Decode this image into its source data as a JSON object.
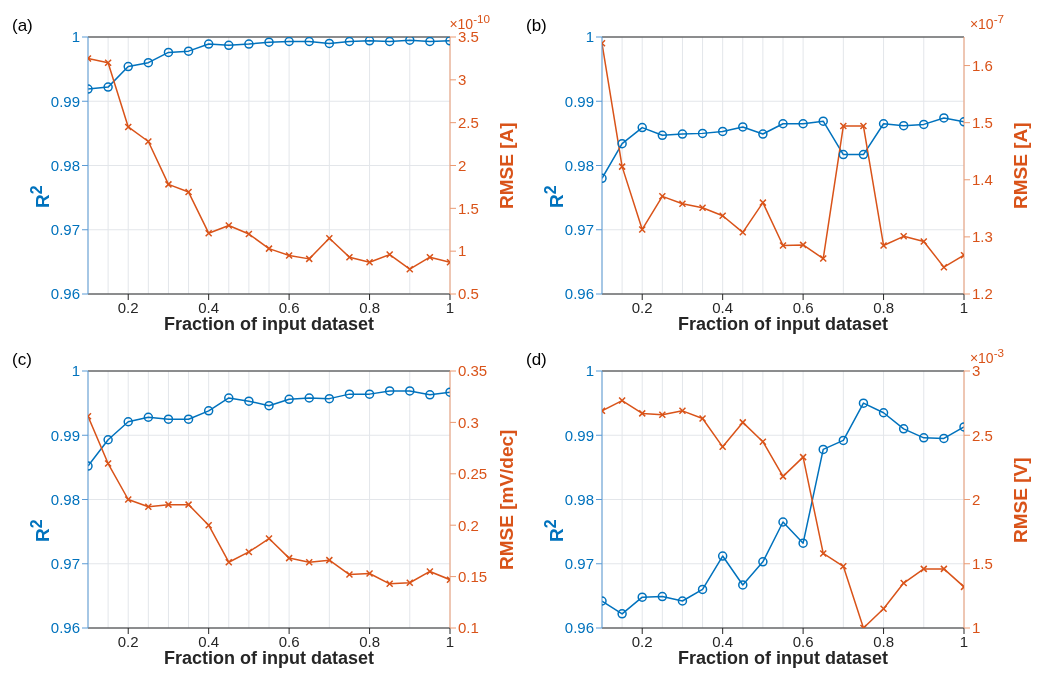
{
  "chart_data": [
    {
      "type": "line",
      "title": "(a)",
      "xlabel": "Fraction of input dataset",
      "ylabel": "R$^{2}$",
      "y2label": "RMSE [A]",
      "annotations": [
        "×10$^{-10}$"
      ],
      "x": [
        0.1,
        0.15,
        0.2,
        0.25,
        0.3,
        0.35,
        0.4,
        0.45,
        0.5,
        0.55,
        0.6,
        0.65,
        0.7,
        0.75,
        0.8,
        0.85,
        0.9,
        0.95,
        1
      ],
      "xlim": [
        0.1,
        1
      ],
      "xticks": [
        0.2,
        0.4,
        0.6,
        0.8,
        1
      ],
      "ylim": [
        0.96,
        1
      ],
      "yticks": [
        0.96,
        0.97,
        0.98,
        0.99,
        1
      ],
      "y2lim": [
        0.5,
        3.5
      ],
      "y2ticks": [
        0.5,
        1,
        1.5,
        2,
        2.5,
        3,
        3.5
      ],
      "grid": true,
      "line_style": "solid",
      "series": [
        {
          "color": "#0072bd",
          "marker": "circle",
          "values": [
            0.9919,
            0.9922,
            0.9954,
            0.996,
            0.9976,
            0.9978,
            0.9989,
            0.9987,
            0.9989,
            0.9992,
            0.9993,
            0.9993,
            0.999,
            0.9993,
            0.9994,
            0.9993,
            0.9995,
            0.9993,
            0.9994
          ]
        },
        {
          "color": "#d95319",
          "marker": "cross",
          "axis": "y2",
          "values": [
            3.25,
            3.2,
            2.45,
            2.28,
            1.78,
            1.69,
            1.21,
            1.3,
            1.2,
            1.03,
            0.95,
            0.91,
            1.15,
            0.93,
            0.87,
            0.96,
            0.79,
            0.93,
            0.87
          ]
        }
      ]
    },
    {
      "type": "line",
      "title": "(b)",
      "xlabel": "Fraction of input dataset",
      "ylabel": "R$^{2}$",
      "y2label": "RMSE [A]",
      "annotations": [
        "×10$^{-7}$"
      ],
      "x": [
        0.1,
        0.15,
        0.2,
        0.25,
        0.3,
        0.35,
        0.4,
        0.45,
        0.5,
        0.55,
        0.6,
        0.65,
        0.7,
        0.75,
        0.8,
        0.85,
        0.9,
        0.95,
        1
      ],
      "xlim": [
        0.1,
        1
      ],
      "xticks": [
        0.2,
        0.4,
        0.6,
        0.8,
        1
      ],
      "ylim": [
        0.96,
        1
      ],
      "yticks": [
        0.96,
        0.97,
        0.98,
        0.99,
        1
      ],
      "y2lim": [
        1.2,
        1.65
      ],
      "y2ticks": [
        1.2,
        1.3,
        1.4,
        1.5,
        1.6
      ],
      "grid": true,
      "line_style": "solid",
      "series": [
        {
          "color": "#0072bd",
          "marker": "circle",
          "values": [
            0.978,
            0.9834,
            0.9859,
            0.9847,
            0.9849,
            0.985,
            0.9853,
            0.986,
            0.9849,
            0.9865,
            0.9865,
            0.9869,
            0.9817,
            0.9817,
            0.9865,
            0.9862,
            0.9864,
            0.9874,
            0.9868
          ]
        },
        {
          "color": "#d95319",
          "marker": "cross",
          "axis": "y2",
          "values": [
            1.639,
            1.423,
            1.313,
            1.371,
            1.358,
            1.351,
            1.337,
            1.308,
            1.36,
            1.285,
            1.286,
            1.262,
            1.494,
            1.494,
            1.285,
            1.301,
            1.292,
            1.247,
            1.268
          ]
        }
      ]
    },
    {
      "type": "line",
      "title": "(c)",
      "xlabel": "Fraction of input dataset",
      "ylabel": "R$^{2}$",
      "y2label": "RMSE [mV/dec]",
      "x": [
        0.1,
        0.15,
        0.2,
        0.25,
        0.3,
        0.35,
        0.4,
        0.45,
        0.5,
        0.55,
        0.6,
        0.65,
        0.7,
        0.75,
        0.8,
        0.85,
        0.9,
        0.95,
        1
      ],
      "xlim": [
        0.1,
        1
      ],
      "xticks": [
        0.2,
        0.4,
        0.6,
        0.8,
        1
      ],
      "ylim": [
        0.96,
        1
      ],
      "yticks": [
        0.96,
        0.97,
        0.98,
        0.99,
        1
      ],
      "y2lim": [
        0.1,
        0.35
      ],
      "y2ticks": [
        0.1,
        0.15,
        0.2,
        0.25,
        0.3,
        0.35
      ],
      "grid": true,
      "line_style": "solid",
      "series": [
        {
          "color": "#0072bd",
          "marker": "circle",
          "values": [
            0.9852,
            0.9893,
            0.9921,
            0.9928,
            0.9925,
            0.9925,
            0.9938,
            0.9958,
            0.9953,
            0.9946,
            0.9956,
            0.9958,
            0.9957,
            0.9964,
            0.9964,
            0.9969,
            0.9969,
            0.9963,
            0.9967
          ]
        },
        {
          "color": "#d95319",
          "marker": "cross",
          "axis": "y2",
          "values": [
            0.306,
            0.26,
            0.225,
            0.218,
            0.22,
            0.22,
            0.2,
            0.164,
            0.174,
            0.187,
            0.168,
            0.164,
            0.166,
            0.152,
            0.153,
            0.143,
            0.144,
            0.155,
            0.147
          ]
        }
      ]
    },
    {
      "type": "line",
      "title": "(d)",
      "xlabel": "Fraction of input dataset",
      "ylabel": "R$^{2}$",
      "y2label": "RMSE [V]",
      "annotations": [
        "×10$^{-3}$"
      ],
      "x": [
        0.1,
        0.15,
        0.2,
        0.25,
        0.3,
        0.35,
        0.4,
        0.45,
        0.5,
        0.55,
        0.6,
        0.65,
        0.7,
        0.75,
        0.8,
        0.85,
        0.9,
        0.95,
        1
      ],
      "xlim": [
        0.1,
        1
      ],
      "xticks": [
        0.2,
        0.4,
        0.6,
        0.8,
        1
      ],
      "ylim": [
        0.96,
        1
      ],
      "yticks": [
        0.96,
        0.97,
        0.98,
        0.99,
        1
      ],
      "y2lim": [
        1,
        3
      ],
      "y2ticks": [
        1,
        1.5,
        2,
        2.5,
        3
      ],
      "grid": true,
      "line_style": "solid",
      "series": [
        {
          "color": "#0072bd",
          "marker": "circle",
          "values": [
            0.9642,
            0.9622,
            0.9648,
            0.9649,
            0.9642,
            0.966,
            0.9712,
            0.9667,
            0.9703,
            0.9765,
            0.9732,
            0.9878,
            0.9892,
            0.995,
            0.9935,
            0.991,
            0.9896,
            0.9895,
            0.9913
          ]
        },
        {
          "color": "#d95319",
          "marker": "cross",
          "axis": "y2",
          "values": [
            2.69,
            2.77,
            2.67,
            2.66,
            2.69,
            2.63,
            2.41,
            2.6,
            2.45,
            2.18,
            2.33,
            1.58,
            1.48,
            1.0,
            1.15,
            1.35,
            1.46,
            1.46,
            1.32
          ]
        }
      ]
    }
  ]
}
